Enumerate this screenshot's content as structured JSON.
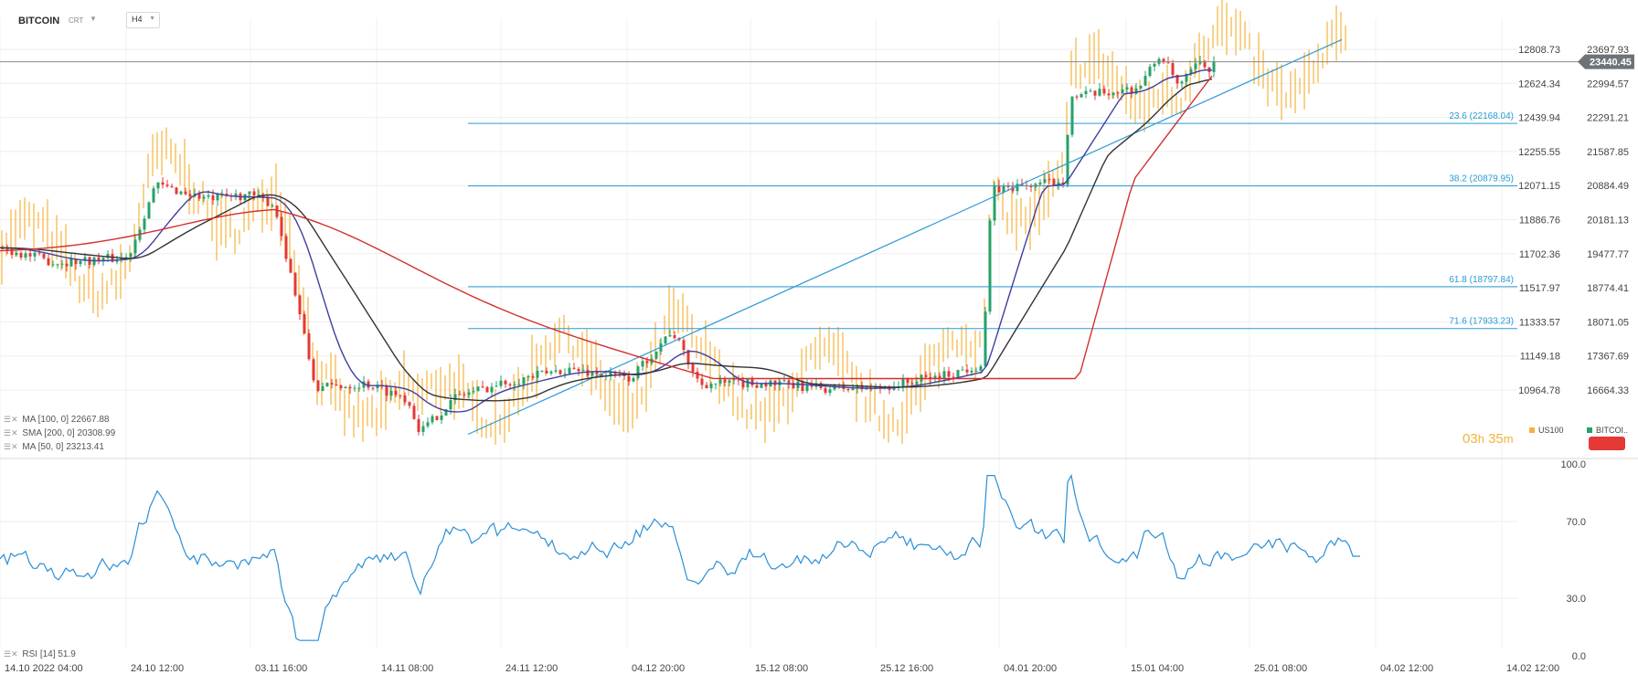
{
  "header": {
    "symbol": "BITCOIN",
    "symbol_sub": "CRT",
    "timeframe": "H4"
  },
  "indicators": [
    {
      "label": "MA [100, 0]",
      "value": "22667.88"
    },
    {
      "label": "SMA [200, 0]",
      "value": "20308.99"
    },
    {
      "label": "MA [50, 0]",
      "value": "23213.41"
    }
  ],
  "rsi_legend": {
    "label": "RSI [14]",
    "value": "51.9"
  },
  "timer": {
    "hours": "03",
    "h": "h",
    "minutes": "35",
    "m": "m"
  },
  "compare_legend": [
    {
      "name": "US100",
      "color": "#f3b33e"
    },
    {
      "name": "BITCOI..",
      "color": "#26a269"
    }
  ],
  "colors": {
    "btc_candle_up": "#26a269",
    "btc_candle_down": "#e53935",
    "us100_bars": "#f3b33e",
    "ma100": "#333333",
    "sma200": "#d32f2f",
    "ma50": "#3f3fa0",
    "fib": "#2a9ad6",
    "rsi": "#2a8fd6",
    "price_badge": "#6d7378"
  },
  "chart_data": [
    {
      "type": "line",
      "name": "main",
      "series": [
        {
          "name": "BITCOIN",
          "kind": "candlestick"
        },
        {
          "name": "US100",
          "kind": "ohlc-bars"
        },
        {
          "name": "MA [100, 0]"
        },
        {
          "name": "SMA [200, 0]"
        },
        {
          "name": "MA [50, 0]"
        }
      ],
      "x_ticks": [
        "14.10 2022  04:00",
        "24.10  12:00",
        "03.11  16:00",
        "14.11  08:00",
        "24.11  12:00",
        "04.12  20:00",
        "15.12  08:00",
        "25.12  16:00",
        "04.01  20:00",
        "15.01  04:00",
        "25.01  08:00",
        "04.02  12:00",
        "14.02  12:00"
      ],
      "y_left_ticks": [
        "12808.73",
        "12624.34",
        "12439.94",
        "12255.55",
        "12071.15",
        "11886.76",
        "11702.36",
        "11517.97",
        "11333.57",
        "11149.18",
        "10964.78"
      ],
      "y_right_ticks": [
        "23697.93",
        "22994.57",
        "22291.21",
        "21587.85",
        "20884.49",
        "20181.13",
        "19477.77",
        "18774.41",
        "18071.05",
        "17367.69",
        "16664.33"
      ],
      "ylim_right": [
        16664.33,
        23697.93
      ],
      "last_price": "23440.45",
      "fib_levels": [
        {
          "label": "23.6 (22168.04)",
          "value": 22168.04
        },
        {
          "label": "38.2 (20879.95)",
          "value": 20879.95
        },
        {
          "label": "61.8 (18797.84)",
          "value": 18797.84
        },
        {
          "label": "71.6 (17933.23)",
          "value": 17933.23
        }
      ],
      "btc_key_points": [
        {
          "t": 0,
          "close": 19600
        },
        {
          "t": 60,
          "close": 19300
        },
        {
          "t": 140,
          "close": 19400
        },
        {
          "t": 170,
          "close": 20900
        },
        {
          "t": 230,
          "close": 20600
        },
        {
          "t": 270,
          "close": 20700
        },
        {
          "t": 300,
          "close": 20500
        },
        {
          "t": 320,
          "close": 18900
        },
        {
          "t": 345,
          "close": 16700
        },
        {
          "t": 400,
          "close": 16800
        },
        {
          "t": 445,
          "close": 16500
        },
        {
          "t": 460,
          "close": 15800
        },
        {
          "t": 500,
          "close": 16550
        },
        {
          "t": 560,
          "close": 16850
        },
        {
          "t": 620,
          "close": 17100
        },
        {
          "t": 690,
          "close": 16900
        },
        {
          "t": 735,
          "close": 17900
        },
        {
          "t": 765,
          "close": 16800
        },
        {
          "t": 840,
          "close": 16800
        },
        {
          "t": 900,
          "close": 16700
        },
        {
          "t": 960,
          "close": 16700
        },
        {
          "t": 1040,
          "close": 17000
        },
        {
          "t": 1075,
          "close": 17200
        },
        {
          "t": 1085,
          "close": 20800
        },
        {
          "t": 1130,
          "close": 20900
        },
        {
          "t": 1165,
          "close": 21000
        },
        {
          "t": 1170,
          "close": 22700
        },
        {
          "t": 1210,
          "close": 22800
        },
        {
          "t": 1245,
          "close": 22900
        },
        {
          "t": 1270,
          "close": 23600
        },
        {
          "t": 1290,
          "close": 22900
        },
        {
          "t": 1310,
          "close": 23400
        },
        {
          "t": 1325,
          "close": 23300
        },
        {
          "t": 1330,
          "close": 23440
        }
      ]
    },
    {
      "type": "line",
      "name": "rsi",
      "series": [
        {
          "name": "RSI [14]"
        }
      ],
      "ylim": [
        0,
        100
      ],
      "y_ticks": [
        "100.0",
        "70.0",
        "30.0",
        "0.0"
      ],
      "last_value": 51.9
    }
  ]
}
